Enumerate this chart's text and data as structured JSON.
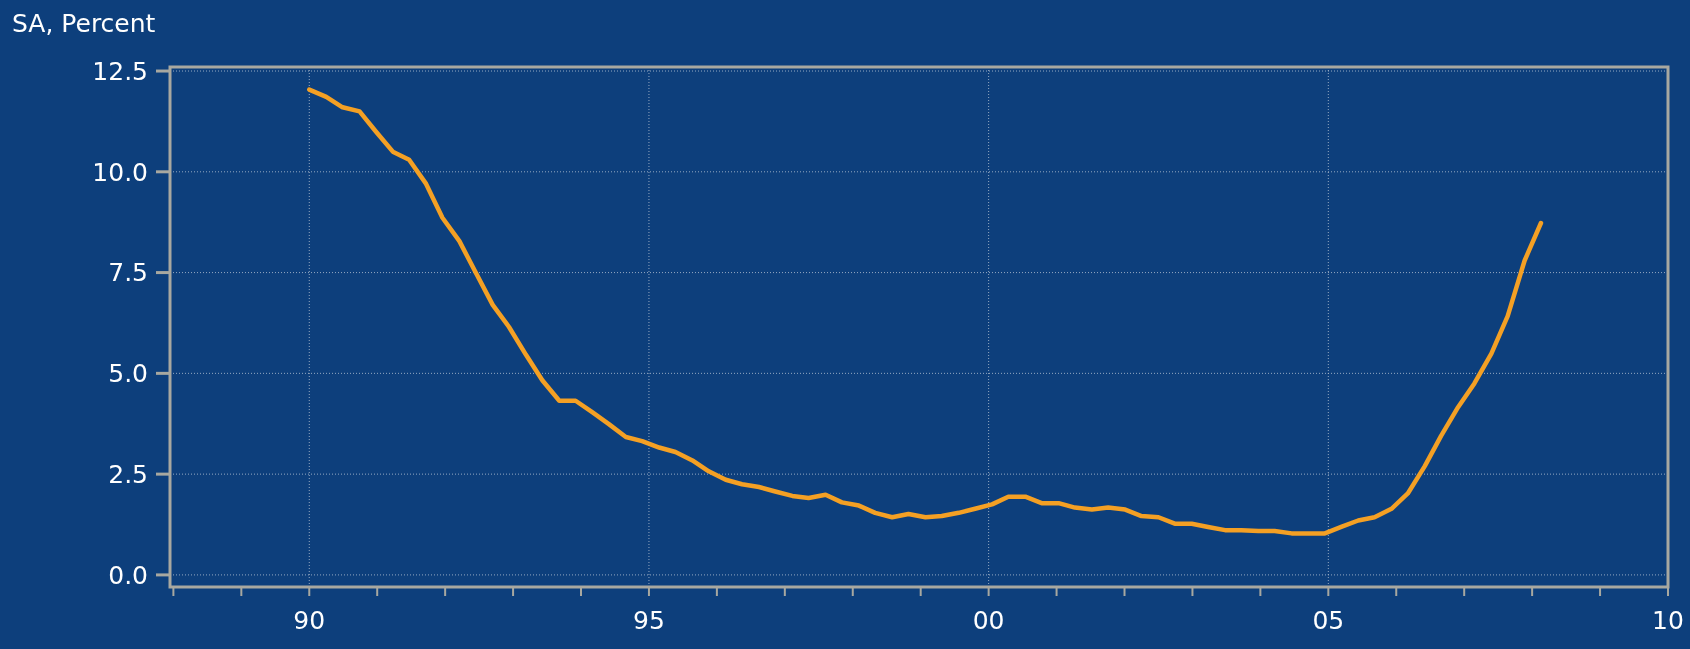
{
  "chart_data": {
    "type": "line",
    "ylabel": "SA, Percent",
    "x": [
      1990,
      1990.25,
      1990.49,
      1990.74,
      1990.98,
      1991.23,
      1991.47,
      1991.72,
      1991.96,
      1992.21,
      1992.45,
      1992.7,
      1992.94,
      1993.19,
      1993.43,
      1993.68,
      1993.92,
      1994.17,
      1994.41,
      1994.66,
      1994.9,
      1995.15,
      1995.39,
      1995.64,
      1995.88,
      1996.13,
      1996.37,
      1996.62,
      1996.86,
      1997.11,
      1997.35,
      1997.6,
      1997.84,
      1998.09,
      1998.33,
      1998.58,
      1998.82,
      1999.07,
      1999.31,
      1999.56,
      1999.8,
      2000.05,
      2000.29,
      2000.54,
      2000.78,
      2001.03,
      2001.27,
      2001.52,
      2001.76,
      2002.01,
      2002.25,
      2002.5,
      2002.74,
      2002.99,
      2003.23,
      2003.48,
      2003.72,
      2003.97,
      2004.21,
      2004.46,
      2004.7,
      2004.95,
      2005.19,
      2005.44,
      2005.68,
      2005.93,
      2006.17,
      2006.42,
      2006.66,
      2006.91,
      2007.15,
      2007.4,
      2007.64,
      2007.89,
      2008.13
    ],
    "series": [
      {
        "color": "#f4a024",
        "values": [
          12.04,
          11.86,
          11.6,
          11.5,
          11.0,
          10.5,
          10.3,
          9.7,
          8.86,
          8.28,
          7.5,
          6.7,
          6.15,
          5.46,
          4.83,
          4.32,
          4.32,
          4.03,
          3.74,
          3.42,
          3.32,
          3.16,
          3.05,
          2.84,
          2.57,
          2.36,
          2.25,
          2.18,
          2.07,
          1.96,
          1.91,
          1.99,
          1.8,
          1.72,
          1.54,
          1.43,
          1.51,
          1.43,
          1.46,
          1.54,
          1.64,
          1.75,
          1.94,
          1.94,
          1.78,
          1.78,
          1.67,
          1.62,
          1.67,
          1.62,
          1.46,
          1.43,
          1.27,
          1.27,
          1.19,
          1.11,
          1.11,
          1.09,
          1.09,
          1.03,
          1.03,
          1.03,
          1.19,
          1.35,
          1.43,
          1.64,
          2.02,
          2.7,
          3.45,
          4.16,
          4.75,
          5.49,
          6.42,
          7.8,
          8.73
        ]
      }
    ],
    "xlim": [
      1987.95,
      2010
    ],
    "xticks": [
      {
        "value": 1988,
        "label": null
      },
      {
        "value": 1989,
        "label": null
      },
      {
        "value": 1990,
        "label": "90"
      },
      {
        "value": 1991,
        "label": null
      },
      {
        "value": 1992,
        "label": null
      },
      {
        "value": 1993,
        "label": null
      },
      {
        "value": 1994,
        "label": null
      },
      {
        "value": 1995,
        "label": "95"
      },
      {
        "value": 1996,
        "label": null
      },
      {
        "value": 1997,
        "label": null
      },
      {
        "value": 1998,
        "label": null
      },
      {
        "value": 1999,
        "label": null
      },
      {
        "value": 2000,
        "label": "00"
      },
      {
        "value": 2001,
        "label": null
      },
      {
        "value": 2002,
        "label": null
      },
      {
        "value": 2003,
        "label": null
      },
      {
        "value": 2004,
        "label": null
      },
      {
        "value": 2005,
        "label": "05"
      },
      {
        "value": 2006,
        "label": null
      },
      {
        "value": 2007,
        "label": null
      },
      {
        "value": 2008,
        "label": null
      },
      {
        "value": 2009,
        "label": null
      },
      {
        "value": 2010,
        "label": "10"
      }
    ],
    "ylim": [
      -0.3,
      12.6
    ],
    "yticks": [
      {
        "value": 0,
        "label": "0.0"
      },
      {
        "value": 2.5,
        "label": "2.5"
      },
      {
        "value": 5,
        "label": "5.0"
      },
      {
        "value": 7.5,
        "label": "7.5"
      },
      {
        "value": 10,
        "label": "10.0"
      },
      {
        "value": 12.5,
        "label": "12.5"
      }
    ],
    "grid": true,
    "line_style": "solid",
    "marker": "none"
  }
}
